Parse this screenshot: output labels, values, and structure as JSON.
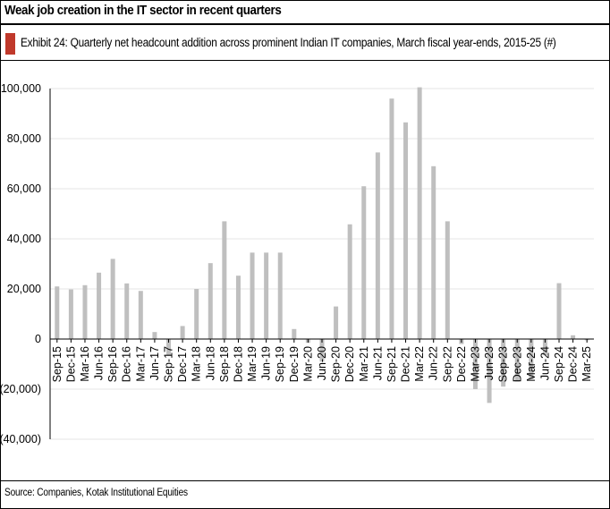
{
  "headline": "Weak job creation in the IT sector in recent quarters",
  "exhibit_title": "Exhibit 24: Quarterly net headcount addition across prominent Indian IT companies, March fiscal year-ends, 2015-25 (#)",
  "source": "Source: Companies, Kotak Institutional Equities",
  "colors": {
    "bar": "#bfbfbf",
    "accent": "#c0392b",
    "grid": "#e6e6e6",
    "axis": "#000000"
  },
  "chart_data": {
    "type": "bar",
    "title": "Exhibit 24: Quarterly net headcount addition across prominent Indian IT companies, March fiscal year-ends, 2015-25 (#)",
    "xlabel": "",
    "ylabel": "",
    "ylim": [
      -40000,
      100000
    ],
    "yticks": [
      -40000,
      -20000,
      0,
      20000,
      40000,
      60000,
      80000,
      100000
    ],
    "ytick_labels": [
      "(40,000)",
      "(20,000)",
      "0",
      "20,000",
      "40,000",
      "60,000",
      "80,000",
      "100,000"
    ],
    "grid": true,
    "categories": [
      "Sep-15",
      "Dec-15",
      "Mar-16",
      "Jun-16",
      "Sep-16",
      "Dec-16",
      "Mar-17",
      "Jun-17",
      "Sep-17",
      "Dec-17",
      "Mar-18",
      "Jun-18",
      "Sep-18",
      "Dec-18",
      "Mar-19",
      "Jun-19",
      "Sep-19",
      "Dec-19",
      "Mar-20",
      "Jun-20",
      "Sep-20",
      "Dec-20",
      "Mar-21",
      "Jun-21",
      "Sep-21",
      "Dec-21",
      "Mar-22",
      "Jun-22",
      "Sep-22",
      "Dec-22",
      "Mar-23",
      "Jun-23",
      "Sep-23",
      "Dec-23",
      "Mar-24",
      "Jun-24",
      "Sep-24",
      "Dec-24",
      "Mar-25"
    ],
    "values": [
      21000,
      19800,
      21500,
      26500,
      32000,
      22200,
      19200,
      2800,
      -6500,
      5200,
      20000,
      30300,
      47000,
      25300,
      34500,
      34500,
      34500,
      4000,
      -1500,
      -9000,
      13000,
      45800,
      61000,
      74500,
      96000,
      86500,
      100500,
      69000,
      47000,
      -2000,
      -20000,
      -25500,
      -19000,
      -17000,
      -16000,
      -6500,
      22300,
      1500,
      -500
    ]
  }
}
